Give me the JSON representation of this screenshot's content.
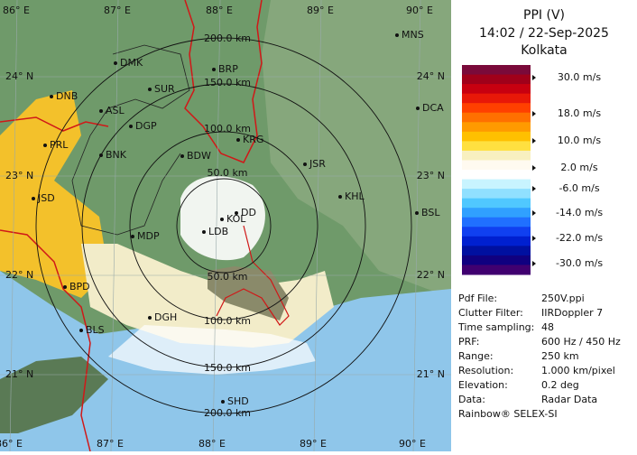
{
  "map": {
    "lon_labels_top": [
      "86° E",
      "87° E",
      "88° E",
      "89° E",
      "90° E"
    ],
    "lon_labels_bottom": [
      "86° E",
      "87° E",
      "88° E",
      "89° E",
      "90° E"
    ],
    "lat_labels_left": [
      "24° N",
      "23° N",
      "22° N",
      "21° N"
    ],
    "lat_labels_right": [
      "24° N",
      "23° N",
      "22° N",
      "21° N"
    ],
    "range_labels_top": [
      "200.0 km",
      "150.0 km",
      "100.0 km",
      "50.0 km"
    ],
    "range_labels_bottom": [
      "50.0 km",
      "100.0 km",
      "150.0 km",
      "200.0 km"
    ],
    "places": [
      "MNS",
      "DMK",
      "BRP",
      "DNB",
      "SUR",
      "ASL",
      "DGP",
      "DCA",
      "PRL",
      "KRG",
      "BNK",
      "BDW",
      "JSR",
      "KHL",
      "JSD",
      "BSL",
      "KOL",
      "DD",
      "LDB",
      "MDP",
      "BPD",
      "DGH",
      "BLS",
      "SHD"
    ]
  },
  "panel": {
    "title": "PPI (V)",
    "datetime": "14:02 / 22-Sep-2025",
    "station": "Kolkata",
    "legend_labels": [
      "30.0 m/s",
      "18.0 m/s",
      "10.0 m/s",
      "2.0 m/s",
      "-6.0 m/s",
      "-14.0 m/s",
      "-22.0 m/s",
      "-30.0 m/s"
    ],
    "info": [
      [
        "Pdf File:",
        "250V.ppi"
      ],
      [
        "Clutter Filter:",
        "IIRDoppler 7"
      ],
      [
        "Time sampling:",
        "48"
      ],
      [
        "PRF:",
        "600 Hz / 450 Hz"
      ],
      [
        "Range:",
        "250 km"
      ],
      [
        "Resolution:",
        "1.000 km/pixel"
      ],
      [
        "Elevation:",
        "0.2 deg"
      ],
      [
        "Data:",
        "Radar Data"
      ]
    ],
    "footer": "Rainbow® SELEX-SI"
  }
}
